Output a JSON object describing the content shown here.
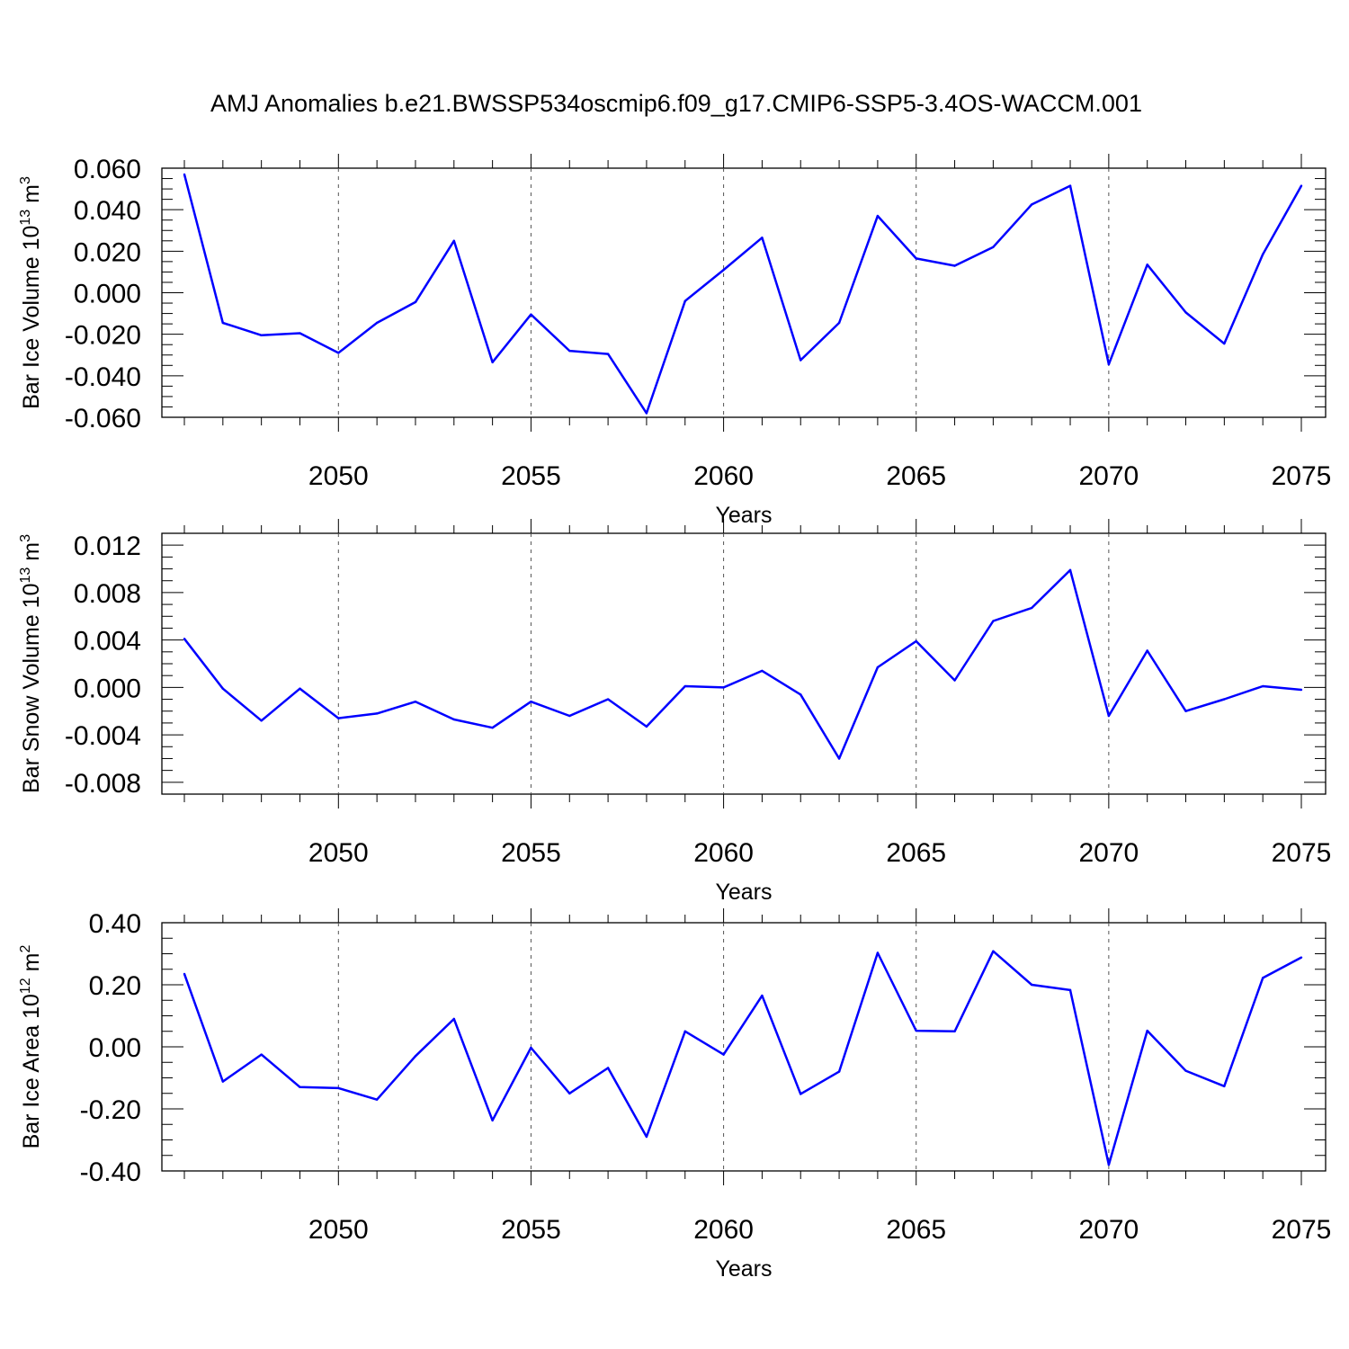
{
  "title": "AMJ Anomalies b.e21.BWSSP534oscmip6.f09_g17.CMIP6-SSP5-3.4OS-WACCM.001",
  "chart_data": [
    {
      "type": "line",
      "ylabel_main": "Bar Ice Volume 10",
      "ylabel_exp": "13",
      "ylabel_unit": "m",
      "ylabel_unit_exp": "3",
      "xlabel": "Years",
      "xlim": [
        2046,
        2075
      ],
      "ylim": [
        -0.06,
        0.06
      ],
      "yticks": [
        -0.06,
        -0.04,
        -0.02,
        0.0,
        0.02,
        0.04,
        0.06
      ],
      "ytick_labels": [
        "-0.060",
        "-0.040",
        "-0.020",
        "0.000",
        "0.020",
        "0.040",
        "0.060"
      ],
      "xticks": [
        2050,
        2055,
        2060,
        2065,
        2070,
        2075
      ],
      "xtick_labels": [
        "2050",
        "2055",
        "2060",
        "2065",
        "2070",
        "2075"
      ],
      "line_color": "#0000ff",
      "x": [
        2046,
        2047,
        2048,
        2049,
        2050,
        2051,
        2052,
        2053,
        2054,
        2055,
        2056,
        2057,
        2058,
        2059,
        2060,
        2061,
        2062,
        2063,
        2064,
        2065,
        2066,
        2067,
        2068,
        2069,
        2070,
        2071,
        2072,
        2073,
        2074,
        2075
      ],
      "values": [
        0.057,
        -0.0145,
        -0.0205,
        -0.0195,
        -0.029,
        -0.0145,
        -0.0045,
        0.025,
        -0.0335,
        -0.0105,
        -0.028,
        -0.0295,
        -0.058,
        -0.004,
        0.011,
        0.0265,
        -0.0325,
        -0.0145,
        0.037,
        0.0165,
        0.013,
        0.022,
        0.0425,
        0.0515,
        -0.0345,
        0.0135,
        -0.0095,
        -0.0245,
        0.0185,
        0.0515
      ]
    },
    {
      "type": "line",
      "ylabel_main": "Bar Snow Volume 10",
      "ylabel_exp": "13",
      "ylabel_unit": "m",
      "ylabel_unit_exp": "3",
      "xlabel": "Years",
      "xlim": [
        2046,
        2075
      ],
      "ylim": [
        -0.009,
        0.013
      ],
      "yticks": [
        -0.008,
        -0.004,
        0.0,
        0.004,
        0.008,
        0.012
      ],
      "ytick_labels": [
        "-0.008",
        "-0.004",
        "0.000",
        "0.004",
        "0.008",
        "0.012"
      ],
      "xticks": [
        2050,
        2055,
        2060,
        2065,
        2070,
        2075
      ],
      "xtick_labels": [
        "2050",
        "2055",
        "2060",
        "2065",
        "2070",
        "2075"
      ],
      "line_color": "#0000ff",
      "x": [
        2046,
        2047,
        2048,
        2049,
        2050,
        2051,
        2052,
        2053,
        2054,
        2055,
        2056,
        2057,
        2058,
        2059,
        2060,
        2061,
        2062,
        2063,
        2064,
        2065,
        2066,
        2067,
        2068,
        2069,
        2070,
        2071,
        2072,
        2073,
        2074,
        2075
      ],
      "values": [
        0.0041,
        -0.0001,
        -0.0028,
        -0.0001,
        -0.0026,
        -0.0022,
        -0.0012,
        -0.0027,
        -0.0034,
        -0.0012,
        -0.0024,
        -0.001,
        -0.0033,
        0.0001,
        0.0,
        0.0014,
        -0.0006,
        -0.006,
        0.0017,
        0.0039,
        0.0006,
        0.0056,
        0.0067,
        0.0099,
        -0.0024,
        0.0031,
        -0.002,
        -0.001,
        0.0001,
        -0.0002
      ]
    },
    {
      "type": "line",
      "ylabel_main": "Bar Ice Area 10",
      "ylabel_exp": "12",
      "ylabel_unit": "m",
      "ylabel_unit_exp": "2",
      "xlabel": "Years",
      "xlim": [
        2046,
        2075
      ],
      "ylim": [
        -0.4,
        0.4
      ],
      "yticks": [
        -0.4,
        -0.2,
        0.0,
        0.2,
        0.4
      ],
      "ytick_labels": [
        "-0.40",
        "-0.20",
        "0.00",
        "0.20",
        "0.40"
      ],
      "xticks": [
        2050,
        2055,
        2060,
        2065,
        2070,
        2075
      ],
      "xtick_labels": [
        "2050",
        "2055",
        "2060",
        "2065",
        "2070",
        "2075"
      ],
      "line_color": "#0000ff",
      "x": [
        2046,
        2047,
        2048,
        2049,
        2050,
        2051,
        2052,
        2053,
        2054,
        2055,
        2056,
        2057,
        2058,
        2059,
        2060,
        2061,
        2062,
        2063,
        2064,
        2065,
        2066,
        2067,
        2068,
        2069,
        2070,
        2071,
        2072,
        2073,
        2074,
        2075
      ],
      "values": [
        0.235,
        -0.112,
        -0.025,
        -0.13,
        -0.133,
        -0.17,
        -0.03,
        0.09,
        -0.237,
        -0.003,
        -0.15,
        -0.068,
        -0.29,
        0.05,
        -0.025,
        0.165,
        -0.152,
        -0.08,
        0.303,
        0.052,
        0.05,
        0.308,
        0.2,
        0.183,
        -0.38,
        0.052,
        -0.077,
        -0.127,
        0.222,
        0.288
      ]
    }
  ]
}
